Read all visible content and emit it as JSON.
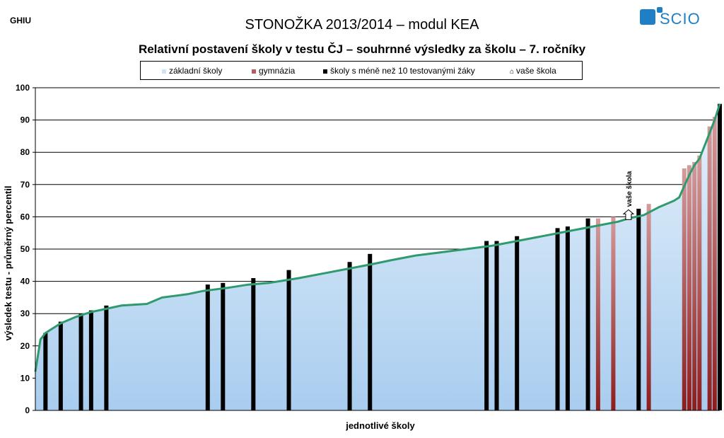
{
  "header": {
    "code": "GHIU",
    "title": "STONOŽKA 2013/2014 – modul KEA",
    "subtitle": "Relativní postavení školy v testu ČJ – souhrnné výsledky za školu – 7. ročníky",
    "logo_text": "SCIO"
  },
  "colors": {
    "line": "#2e9a6e",
    "area_top": "#e6f1fb",
    "area_bottom": "#a9cdef",
    "gymnazia": "#b25a5a",
    "small_schools": "#000000"
  },
  "icons": {
    "your_school": "house-arrow-icon"
  },
  "chart_data": {
    "type": "area",
    "title": "Relativní postavení školy v testu ČJ – souhrnné výsledky za školu – 7. ročníky",
    "xlabel": "jednotlivé školy",
    "ylabel": "výsledek testu - průměrný percentil",
    "ylim": [
      0,
      100
    ],
    "yticks": [
      0,
      10,
      20,
      30,
      40,
      50,
      60,
      70,
      80,
      90,
      100
    ],
    "grid": true,
    "legend": {
      "position": "top",
      "items": [
        "základní školy",
        "gymnázia",
        "školy s méně než 10 testovanými žáky",
        "vaše škola"
      ]
    },
    "school_count": 130,
    "curve": [
      [
        0,
        12
      ],
      [
        1,
        22
      ],
      [
        2,
        24
      ],
      [
        3,
        25
      ],
      [
        5,
        27
      ],
      [
        8,
        29
      ],
      [
        11,
        30.5
      ],
      [
        14,
        31.5
      ],
      [
        17,
        32.5
      ],
      [
        22,
        33
      ],
      [
        25,
        35
      ],
      [
        30,
        36
      ],
      [
        33,
        37
      ],
      [
        38,
        38
      ],
      [
        42,
        39
      ],
      [
        46,
        39.5
      ],
      [
        52,
        41
      ],
      [
        57,
        42.5
      ],
      [
        62,
        44
      ],
      [
        67,
        45.5
      ],
      [
        70,
        46.5
      ],
      [
        75,
        48
      ],
      [
        80,
        49
      ],
      [
        85,
        50
      ],
      [
        90,
        51
      ],
      [
        95,
        52.5
      ],
      [
        100,
        54
      ],
      [
        105,
        55.5
      ],
      [
        110,
        57
      ],
      [
        115,
        58.5
      ],
      [
        117,
        59.5
      ],
      [
        120,
        60.5
      ],
      [
        123,
        63
      ],
      [
        126,
        65
      ],
      [
        127,
        66
      ],
      [
        129,
        73
      ],
      [
        130,
        76
      ],
      [
        131,
        78
      ],
      [
        133,
        86
      ],
      [
        134,
        90
      ],
      [
        135,
        95
      ]
    ],
    "small_schools": [
      {
        "x": 2,
        "value": 24
      },
      {
        "x": 5,
        "value": 27.5
      },
      {
        "x": 9,
        "value": 30
      },
      {
        "x": 11,
        "value": 31
      },
      {
        "x": 14,
        "value": 32.5
      },
      {
        "x": 34,
        "value": 39
      },
      {
        "x": 37,
        "value": 39.5
      },
      {
        "x": 43,
        "value": 41
      },
      {
        "x": 50,
        "value": 43.5
      },
      {
        "x": 62,
        "value": 46
      },
      {
        "x": 66,
        "value": 48.5
      },
      {
        "x": 89,
        "value": 52.5
      },
      {
        "x": 91,
        "value": 52.5
      },
      {
        "x": 95,
        "value": 54
      },
      {
        "x": 103,
        "value": 56.5
      },
      {
        "x": 105,
        "value": 57
      },
      {
        "x": 109,
        "value": 59.5
      },
      {
        "x": 119,
        "value": 62.5
      },
      {
        "x": 135,
        "value": 95
      }
    ],
    "gymnazia": [
      {
        "x": 111,
        "value": 59.5
      },
      {
        "x": 114,
        "value": 60
      },
      {
        "x": 121,
        "value": 64
      },
      {
        "x": 128,
        "value": 75
      },
      {
        "x": 129,
        "value": 76
      },
      {
        "x": 130,
        "value": 77
      },
      {
        "x": 131,
        "value": 79
      },
      {
        "x": 133,
        "value": 88
      },
      {
        "x": 134,
        "value": 91
      }
    ],
    "your_school": {
      "x": 117,
      "value": 60,
      "label": "vaše škola"
    }
  }
}
